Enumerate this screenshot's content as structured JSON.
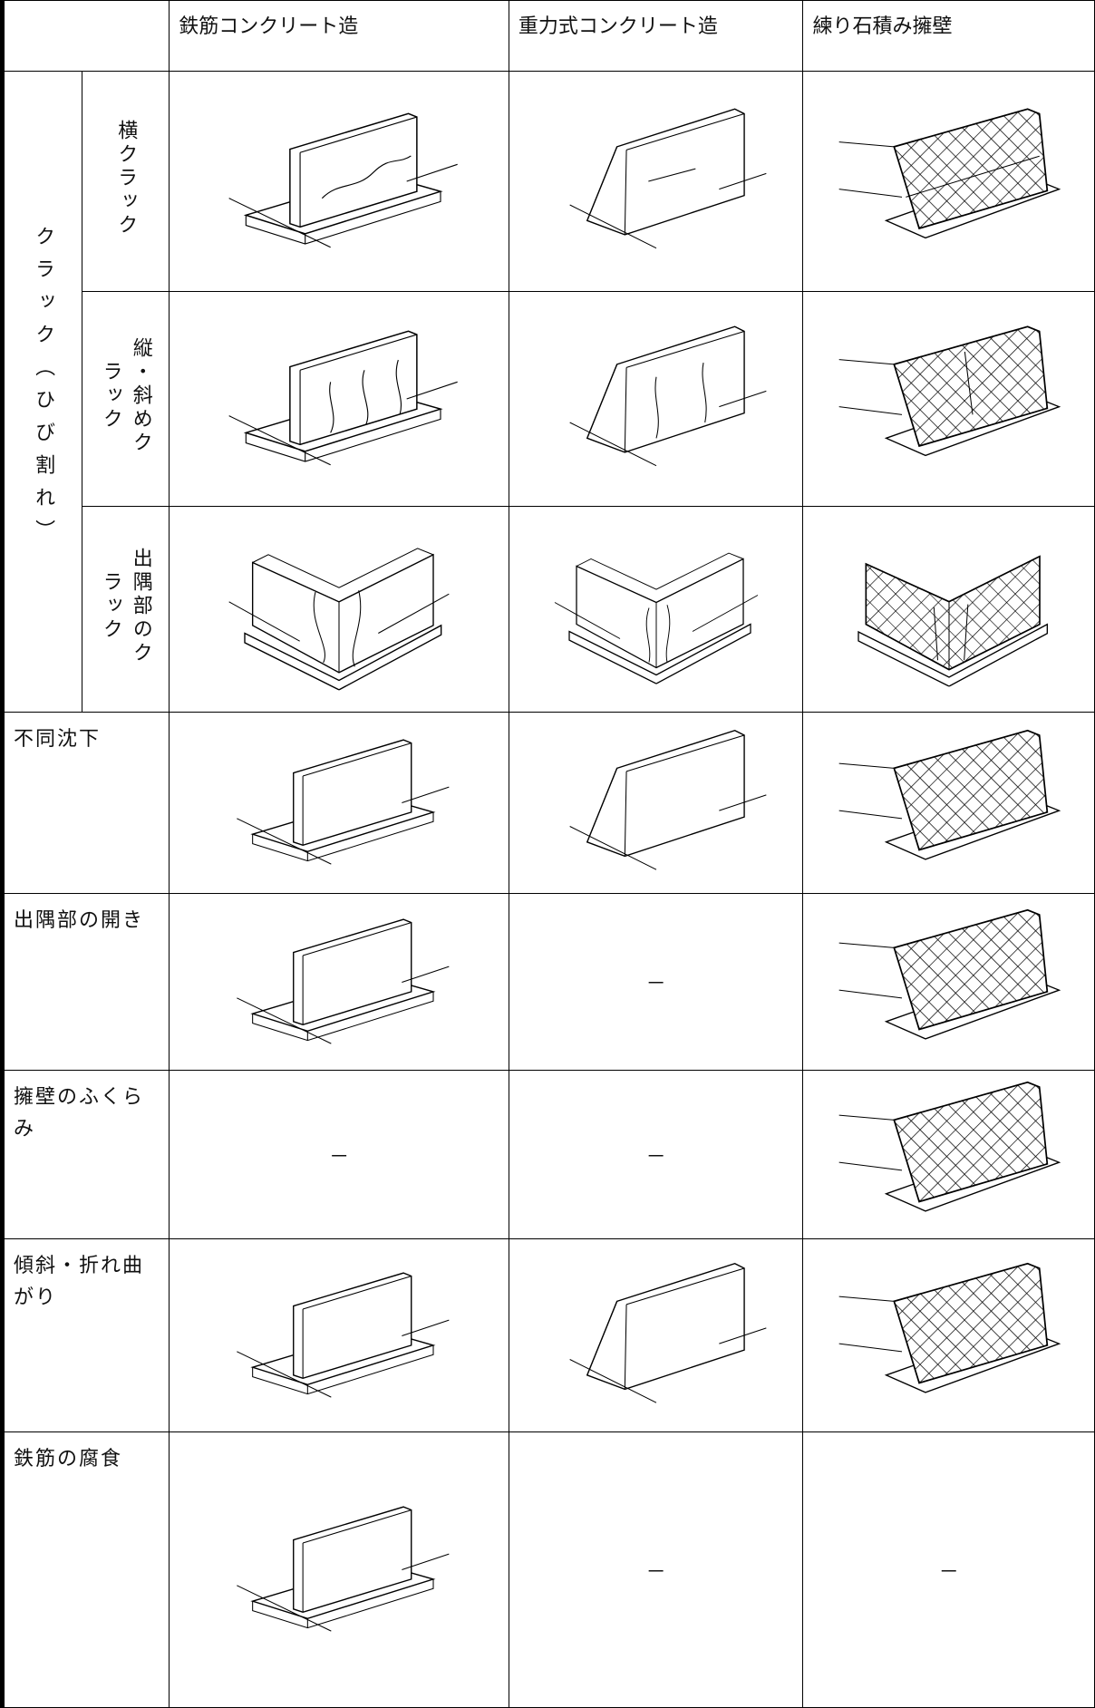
{
  "header": {
    "columns": [
      "鉄筋コンクリート造",
      "重力式コンクリート造",
      "練り石積み擁壁"
    ]
  },
  "crack": {
    "label": "クラック（ひび割れ）",
    "subtypes": [
      "横クラック",
      "縦・斜めクラック",
      "出隅部のクラック"
    ]
  },
  "rows": [
    {
      "label": "不同沈下",
      "cells": [
        null,
        null,
        null
      ]
    },
    {
      "label": "出隅部の開き",
      "cells": [
        null,
        "－",
        null
      ]
    },
    {
      "label": "擁壁のふくらみ",
      "cells": [
        "－",
        "－",
        null
      ]
    },
    {
      "label": "傾斜・折れ曲がり",
      "cells": [
        null,
        null,
        null
      ]
    },
    {
      "label": "鉄筋の腐食",
      "cells": [
        null,
        "－",
        "－"
      ]
    }
  ]
}
